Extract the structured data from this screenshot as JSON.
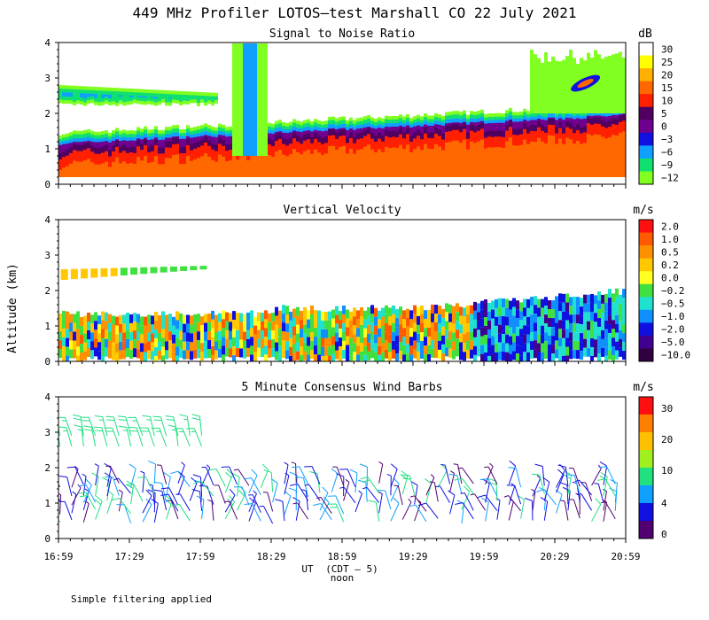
{
  "title": "449 MHz Profiler LOTOS–test Marshall CO 22 July 2021",
  "footer_note": "Simple filtering applied",
  "xaxis": {
    "label": "UT",
    "label_extra": "(CDT – 5)",
    "noon_label": "noon",
    "tick_labels": [
      "16:59",
      "17:29",
      "17:59",
      "18:29",
      "18:59",
      "19:29",
      "19:59",
      "20:29",
      "20:59"
    ],
    "range_hours": [
      16.9833,
      20.9833
    ]
  },
  "yaxis": {
    "label": "Altitude (km)",
    "tick_labels": [
      "0",
      "1",
      "2",
      "3",
      "4"
    ],
    "range_km": [
      0,
      4
    ]
  },
  "chart_data": [
    {
      "type": "heatmap",
      "title": "Signal to Noise Ratio",
      "colorbar_unit": "dB",
      "colorbar_labels": [
        "30",
        "25",
        "20",
        "15",
        "10",
        "5",
        "0",
        "−3",
        "−6",
        "−9",
        "−12"
      ],
      "colorbar_colors": [
        "#ffffff",
        "#ffff00",
        "#ffb000",
        "#ff6800",
        "#ff2000",
        "#500060",
        "#700090",
        "#1010e0",
        "#10a0ff",
        "#10e070",
        "#80ff20"
      ],
      "xlim": [
        16.9833,
        20.9833
      ],
      "ylim": [
        0,
        4
      ],
      "layers_km": [
        {
          "name": "strong return (10–15 dB)",
          "bottom": 0.2,
          "top_start": 0.9,
          "top_end": 1.7
        },
        {
          "name": "moderate return (0–5 dB)",
          "bottom": 0.2,
          "top_start": 1.2,
          "top_end": 2.0
        },
        {
          "name": "weak return (−6 to −12 dB)",
          "bottom": 0.2,
          "top_start": 1.6,
          "top_end": 2.1
        },
        {
          "name": "residual layer echo",
          "bottom": 2.2,
          "top_start": 2.8,
          "top_end": 2.6
        },
        {
          "name": "clutter column",
          "bottom": 0.2,
          "top_start": 4.0,
          "top_end": 4.0
        }
      ]
    },
    {
      "type": "heatmap",
      "title": "Vertical Velocity",
      "colorbar_unit": "m/s",
      "colorbar_labels": [
        "2.0",
        "1.0",
        "0.5",
        "0.2",
        "0.0",
        "−0.2",
        "−0.5",
        "−1.0",
        "−2.0",
        "−5.0",
        "−10.0"
      ],
      "colorbar_colors": [
        "#ff1010",
        "#ff5a00",
        "#ff9000",
        "#ffc800",
        "#ffff20",
        "#40e040",
        "#20e0d0",
        "#1090ff",
        "#1010e0",
        "#400090",
        "#300040"
      ],
      "xlim": [
        16.9833,
        20.9833
      ],
      "ylim": [
        0,
        4
      ],
      "boundary_layer_top_km": {
        "start": 1.5,
        "end": 2.0
      },
      "residual_layer_km": [
        2.3,
        2.6
      ]
    },
    {
      "type": "scatter",
      "title": "5 Minute Consensus Wind Barbs",
      "colorbar_unit": "m/s",
      "colorbar_labels": [
        "30",
        "20",
        "10",
        "4",
        "0"
      ],
      "colorbar_colors": [
        "#ff1010",
        "#ff8000",
        "#ffc000",
        "#a0f020",
        "#20e080",
        "#10a0ff",
        "#1010e0",
        "#500070"
      ],
      "xlim": [
        16.9833,
        20.9833
      ],
      "ylim": [
        0,
        4
      ],
      "interval_minutes": 5,
      "levels_km": [
        0.5,
        0.75,
        1.0,
        1.25,
        1.5
      ],
      "residual_levels_km": [
        2.6,
        2.9
      ],
      "residual_end_hour": 18.0,
      "typical_speed_ms": [
        3,
        8
      ],
      "residual_speed_ms": [
        8,
        12
      ]
    }
  ]
}
